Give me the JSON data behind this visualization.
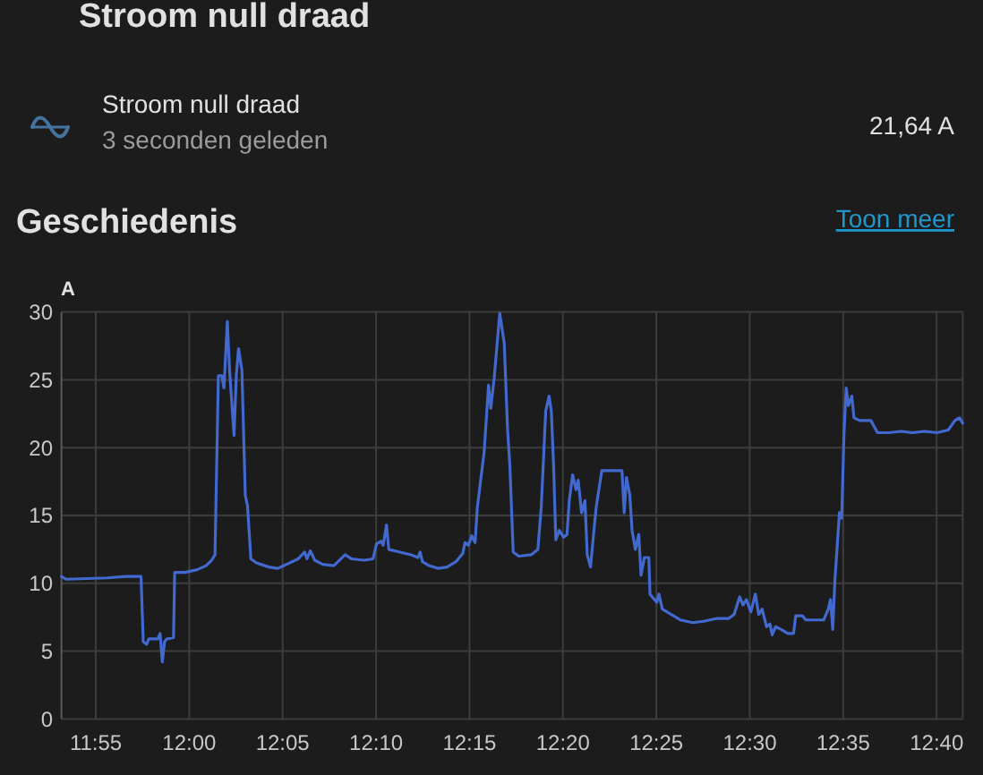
{
  "chart_data": {
    "type": "line",
    "title": "Stroom null draad",
    "subtitle": "Geschiedenis",
    "ylabel": "A",
    "annotations": [
      "Stroom null draad",
      "3 seconden geleden",
      "21,64 A",
      "Toon meer"
    ],
    "color": "#4269d0",
    "grid": true,
    "xlim": [
      11.886,
      12.69
    ],
    "ylim": [
      0,
      30
    ],
    "xticks": [
      {
        "value": 11.9167,
        "label": "11:55"
      },
      {
        "value": 12,
        "label": "12:00"
      },
      {
        "value": 12.0833,
        "label": "12:05"
      },
      {
        "value": 12.1667,
        "label": "12:10"
      },
      {
        "value": 12.25,
        "label": "12:15"
      },
      {
        "value": 12.3333,
        "label": "12:20"
      },
      {
        "value": 12.4167,
        "label": "12:25"
      },
      {
        "value": 12.5,
        "label": "12:30"
      },
      {
        "value": 12.5833,
        "label": "12:35"
      },
      {
        "value": 12.6667,
        "label": "12:40"
      }
    ],
    "yticks": [
      0,
      5,
      10,
      15,
      20,
      25,
      30
    ],
    "x": [
      11.886,
      11.89,
      11.927,
      11.943,
      11.957,
      11.959,
      11.962,
      11.964,
      11.972,
      11.974,
      11.976,
      11.978,
      11.98,
      11.986,
      11.987,
      11.996,
      12.007,
      12.015,
      12.02,
      12.023,
      12.026,
      12.029,
      12.031,
      12.034,
      12.036,
      12.04,
      12.042,
      12.044,
      12.047,
      12.05,
      12.052,
      12.055,
      12.06,
      12.071,
      12.079,
      12.087,
      12.097,
      12.103,
      12.105,
      12.108,
      12.112,
      12.119,
      12.129,
      12.139,
      12.145,
      12.156,
      12.164,
      12.167,
      12.171,
      12.173,
      12.176,
      12.178,
      12.188,
      12.198,
      12.204,
      12.206,
      12.208,
      12.214,
      12.222,
      12.23,
      12.238,
      12.244,
      12.246,
      12.249,
      12.252,
      12.255,
      12.257,
      12.261,
      12.263,
      12.267,
      12.269,
      12.272,
      12.277,
      12.281,
      12.284,
      12.286,
      12.289,
      12.294,
      12.305,
      12.311,
      12.314,
      12.318,
      12.321,
      12.323,
      12.325,
      12.327,
      12.33,
      12.334,
      12.337,
      12.339,
      12.342,
      12.345,
      12.347,
      12.35,
      12.353,
      12.355,
      12.358,
      12.361,
      12.363,
      12.368,
      12.377,
      12.386,
      12.388,
      12.39,
      12.393,
      12.395,
      12.398,
      12.401,
      12.403,
      12.406,
      12.41,
      12.411,
      12.417,
      12.419,
      12.422,
      12.43,
      12.438,
      12.449,
      12.459,
      12.47,
      12.481,
      12.486,
      12.491,
      12.494,
      12.497,
      12.501,
      12.505,
      12.508,
      12.511,
      12.515,
      12.518,
      12.52,
      12.523,
      12.528,
      12.534,
      12.539,
      12.541,
      12.547,
      12.55,
      12.566,
      12.57,
      12.572,
      12.574,
      12.576,
      12.58,
      12.582,
      12.584,
      12.586,
      12.588,
      12.591,
      12.593,
      12.598,
      12.608,
      12.614,
      12.624,
      12.635,
      12.645,
      12.656,
      12.667,
      12.677,
      12.683,
      12.687,
      12.69
    ],
    "values": [
      10.5,
      10.3,
      10.4,
      10.5,
      10.5,
      5.7,
      5.5,
      5.9,
      5.9,
      6.3,
      4.2,
      5.7,
      5.9,
      6.0,
      10.8,
      10.8,
      11.0,
      11.3,
      11.7,
      12.1,
      25.3,
      25.3,
      24.4,
      29.3,
      25.7,
      20.9,
      25.3,
      27.3,
      25.7,
      16.5,
      15.7,
      11.8,
      11.5,
      11.2,
      11.1,
      11.4,
      11.8,
      12.3,
      11.8,
      12.4,
      11.7,
      11.4,
      11.3,
      12.1,
      11.8,
      11.7,
      11.8,
      12.9,
      13.1,
      12.8,
      14.3,
      12.5,
      12.3,
      12.1,
      11.9,
      12.3,
      11.6,
      11.3,
      11.1,
      11.2,
      11.6,
      12.2,
      13.0,
      12.8,
      13.5,
      13.0,
      15.6,
      18.3,
      19.6,
      24.6,
      22.9,
      25.1,
      29.9,
      27.7,
      21.3,
      18.7,
      12.3,
      12.0,
      12.1,
      12.5,
      15.6,
      22.7,
      23.8,
      22.7,
      18.7,
      13.2,
      13.9,
      13.4,
      13.6,
      16.1,
      18.0,
      16.9,
      17.6,
      15.2,
      16.1,
      12.1,
      11.2,
      13.9,
      15.6,
      18.3,
      18.3,
      18.3,
      15.2,
      17.8,
      16.5,
      13.9,
      12.5,
      13.6,
      10.6,
      11.9,
      11.9,
      9.2,
      8.6,
      9.2,
      8.1,
      7.7,
      7.3,
      7.1,
      7.2,
      7.4,
      7.4,
      7.7,
      9.0,
      8.4,
      8.8,
      7.9,
      9.2,
      7.7,
      8.1,
      6.8,
      7.0,
      6.2,
      6.8,
      6.6,
      6.3,
      6.3,
      7.6,
      7.6,
      7.3,
      7.3,
      8.1,
      8.8,
      6.6,
      10.3,
      15.2,
      14.8,
      20.9,
      24.4,
      23.1,
      23.8,
      22.2,
      22.0,
      22.0,
      21.1,
      21.1,
      21.2,
      21.1,
      21.2,
      21.1,
      21.3,
      22.0,
      22.2,
      21.8
    ]
  }
}
